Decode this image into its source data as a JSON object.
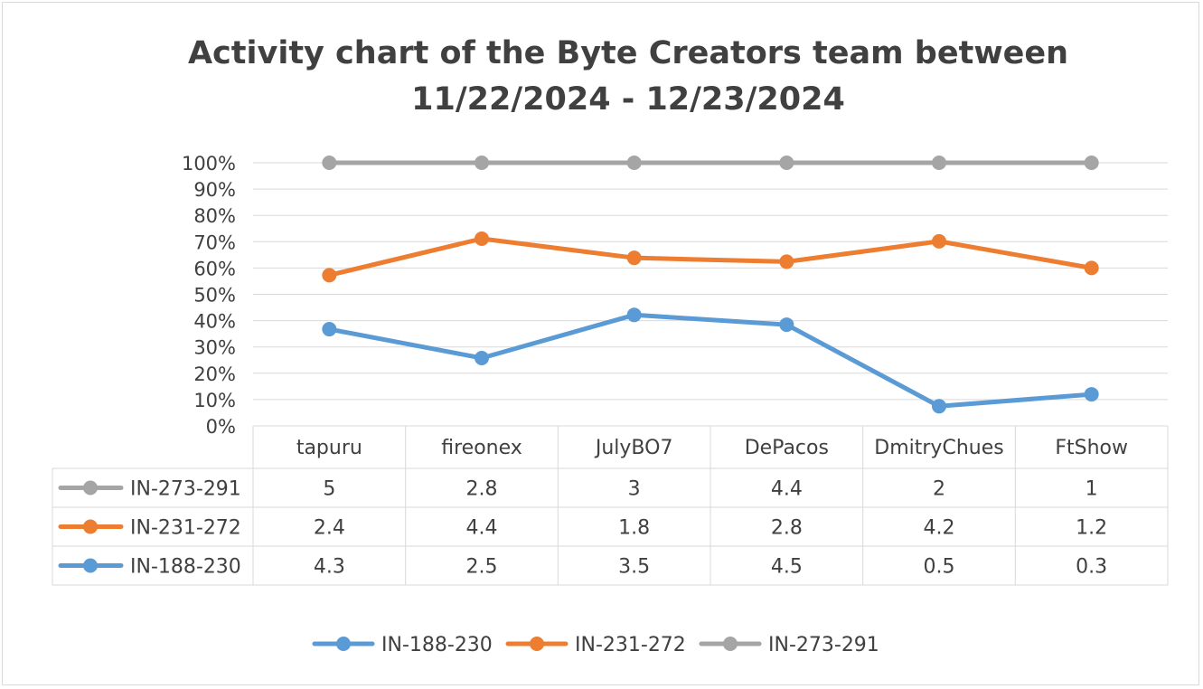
{
  "chart_data": {
    "type": "line",
    "title": "Activity chart of the Byte Creators team between 11/22/2024 - 12/23/2024",
    "title_lines": [
      "Activity chart of the Byte Creators team between",
      "11/22/2024 - 12/23/2024"
    ],
    "categories": [
      "tapuru",
      "fireonex",
      "JulyBO7",
      "DePacos",
      "DmitryChues",
      "FtShow"
    ],
    "stacking": "percent",
    "ylim": [
      0,
      100
    ],
    "y_ticks": [
      "0%",
      "10%",
      "20%",
      "30%",
      "40%",
      "50%",
      "60%",
      "70%",
      "80%",
      "90%",
      "100%"
    ],
    "grid": true,
    "legend_position": "bottom",
    "data_table": true,
    "series": [
      {
        "name": "IN-188-230",
        "color": "#5b9bd5",
        "values": [
          4.3,
          2.5,
          3.5,
          4.5,
          0.5,
          0.3
        ],
        "labels": [
          "4.3",
          "2.5",
          "3.5",
          "4.5",
          "0.5",
          "0.3"
        ]
      },
      {
        "name": "IN-231-272",
        "color": "#ed7d31",
        "values": [
          2.4,
          4.4,
          1.8,
          2.8,
          4.2,
          1.2
        ],
        "labels": [
          "2.4",
          "4.4",
          "1.8",
          "2.8",
          "4.2",
          "1.2"
        ]
      },
      {
        "name": "IN-273-291",
        "color": "#a5a5a5",
        "values": [
          5,
          2.8,
          3,
          4.4,
          2,
          1
        ],
        "labels": [
          "5",
          "2.8",
          "3",
          "4.4",
          "2",
          "1"
        ]
      }
    ],
    "table_order": [
      "IN-273-291",
      "IN-231-272",
      "IN-188-230"
    ]
  }
}
